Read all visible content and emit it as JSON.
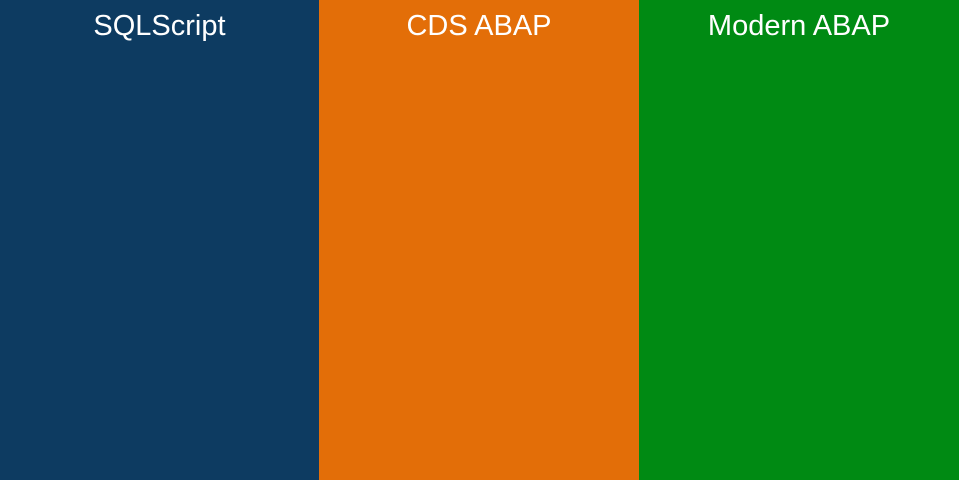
{
  "columns": [
    {
      "title": "SQLScript"
    },
    {
      "title": "CDS ABAP"
    },
    {
      "title": "Modern ABAP"
    }
  ]
}
